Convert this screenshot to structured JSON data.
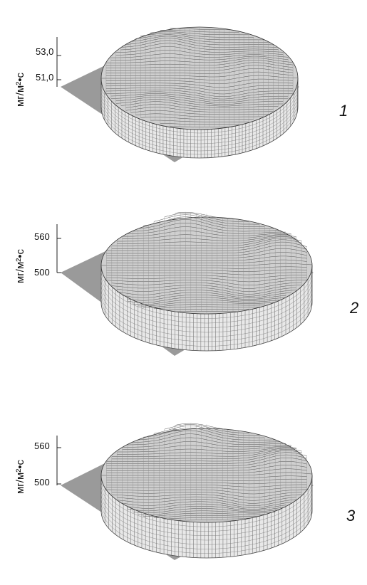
{
  "chart_data": [
    {
      "type": "surface3d",
      "panel_label": "1",
      "zlabel": "мг/м²•с",
      "z_ticks": [
        "53,0",
        "51,0"
      ],
      "peaks": [
        {
          "u": 0.34,
          "v": 0.2,
          "amp": 1.0
        },
        {
          "u": 0.78,
          "v": 0.4,
          "amp": 0.8
        },
        {
          "u": 0.62,
          "v": 0.62,
          "amp": -0.8
        },
        {
          "u": 0.28,
          "v": 0.78,
          "amp": 0.7
        }
      ]
    },
    {
      "type": "surface3d",
      "panel_label": "2",
      "zlabel": "мг/м²•с",
      "z_ticks": [
        "560",
        "500"
      ],
      "peaks": [
        {
          "u": 0.4,
          "v": 0.1,
          "amp": 1.0
        },
        {
          "u": 0.86,
          "v": 0.34,
          "amp": 0.9
        },
        {
          "u": 0.7,
          "v": 0.72,
          "amp": -0.7
        },
        {
          "u": 0.2,
          "v": 0.8,
          "amp": -0.6
        }
      ]
    },
    {
      "type": "surface3d",
      "panel_label": "3",
      "zlabel": "мг/м²•с",
      "z_ticks": [
        "560",
        "500"
      ],
      "peaks": [
        {
          "u": 0.42,
          "v": 0.1,
          "amp": 1.0
        },
        {
          "u": 0.88,
          "v": 0.36,
          "amp": 0.9
        },
        {
          "u": 0.72,
          "v": 0.74,
          "amp": -0.7
        },
        {
          "u": 0.22,
          "v": 0.82,
          "amp": -0.5
        }
      ]
    }
  ]
}
